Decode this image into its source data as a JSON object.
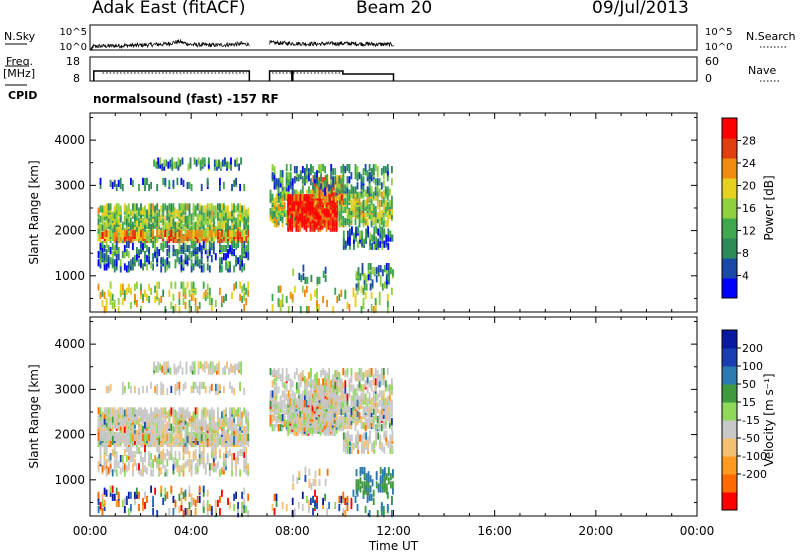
{
  "header": {
    "station": "Adak East (fitACF)",
    "beam": "Beam 20",
    "date": "09/Jul/2013"
  },
  "left_labels": {
    "nsky": "N.Sky",
    "freq": "Freq.",
    "freq_unit": "[MHz]",
    "cpid": "CPID"
  },
  "right_labels": {
    "nsearch": "N.Search",
    "nave": "Nave"
  },
  "cpid_text": "normalsound (fast) -157 RF",
  "colors": {
    "trace": "#000000",
    "power_scale": [
      "#0000ff",
      "#1a4aa8",
      "#2f8a5a",
      "#3fa84f",
      "#8fd040",
      "#e6d020",
      "#f08a10",
      "#e04010",
      "#ff0000"
    ],
    "velocity_scale": [
      "#ff0000",
      "#ff6a00",
      "#ff9a20",
      "#f2c070",
      "#c8c8c8",
      "#8fd85a",
      "#3f9a3f",
      "#2a7ab0",
      "#1a3fb0",
      "#0a1aa0"
    ]
  },
  "chart_data": [
    {
      "type": "line",
      "name": "noise",
      "y_ticks": [
        "10^5",
        "10^0"
      ],
      "right_ticks": [
        "10^5",
        "10^0"
      ],
      "x_range": [
        0,
        24
      ],
      "series": [
        {
          "name": "N.Sky",
          "x": [
            0.1,
            1,
            2,
            3,
            3.5,
            4,
            5,
            6,
            6.3,
            7.1,
            8,
            9,
            10,
            11,
            12
          ],
          "y": [
            0.3,
            0.35,
            0.4,
            0.5,
            0.7,
            0.45,
            0.4,
            0.5,
            0.5,
            0.6,
            0.55,
            0.5,
            0.55,
            0.5,
            0.45
          ]
        }
      ]
    },
    {
      "type": "line",
      "name": "frequency",
      "y_ticks": [
        "18",
        "8"
      ],
      "right_ticks": [
        "60",
        "0"
      ],
      "x_range": [
        0,
        24
      ],
      "series": [
        {
          "name": "Freq",
          "x": [
            0.15,
            6.3,
            7.1,
            10,
            10.05,
            12
          ],
          "y": [
            12.0,
            12.0,
            12.0,
            12.0,
            10.5,
            10.5
          ]
        }
      ]
    },
    {
      "type": "heatmap",
      "name": "power",
      "ylabel": "Slant Range [km]",
      "y_ticks": [
        "4000",
        "3000",
        "2000",
        "1000"
      ],
      "ylim": [
        200,
        4600
      ],
      "x_range": [
        0,
        24
      ],
      "colorbar_label": "Power [dB]",
      "colorbar_ticks": [
        "28",
        "24",
        "20",
        "16",
        "12",
        "8",
        "4"
      ],
      "colorbar_range": [
        0,
        32
      ]
    },
    {
      "type": "heatmap",
      "name": "velocity",
      "ylabel": "Slant Range [km]",
      "y_ticks": [
        "4000",
        "3000",
        "2000",
        "1000"
      ],
      "ylim": [
        200,
        4600
      ],
      "x_range": [
        0,
        24
      ],
      "xlabel": "Time UT",
      "x_ticks": [
        "00:00",
        "04:00",
        "08:00",
        "12:00",
        "16:00",
        "20:00",
        "00:00"
      ],
      "colorbar_label": "Velocity [m s⁻¹]",
      "colorbar_ticks": [
        "200",
        "100",
        "50",
        "15",
        "-15",
        "-50",
        "-100",
        "-200"
      ]
    }
  ]
}
